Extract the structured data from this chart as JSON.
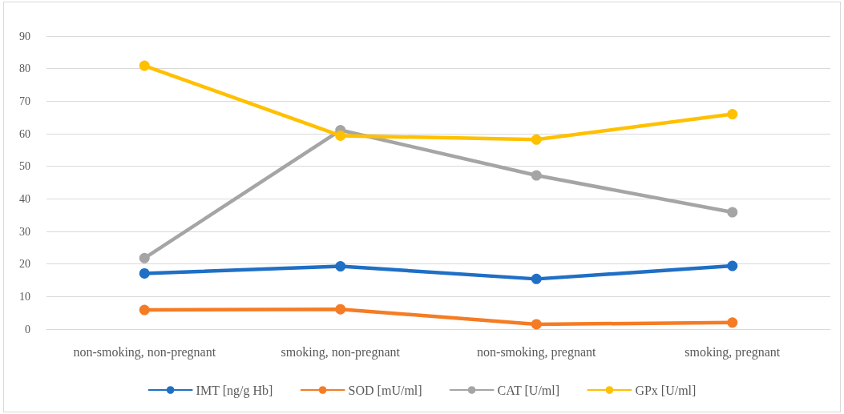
{
  "chart_data": {
    "type": "line",
    "categories": [
      "non-smoking, non-pregnant",
      "smoking, non-pregnant",
      "non-smoking, pregnant",
      "smoking, pregnant"
    ],
    "series": [
      {
        "name": "IMT [ng/g Hb]",
        "color": "#1f6fc5",
        "values": [
          17.1,
          19.3,
          15.4,
          19.4
        ]
      },
      {
        "name": "SOD [mU/ml]",
        "color": "#f57c24",
        "values": [
          5.9,
          6.1,
          1.5,
          2.0
        ]
      },
      {
        "name": "CAT [U/ml]",
        "color": "#a5a5a5",
        "values": [
          21.8,
          61.1,
          47.2,
          35.9
        ]
      },
      {
        "name": "GPx [U/ml]",
        "color": "#ffc000",
        "values": [
          80.9,
          59.4,
          58.2,
          66.0
        ]
      }
    ],
    "ylim": [
      0,
      90
    ],
    "yticks": [
      0,
      10,
      20,
      30,
      40,
      50,
      60,
      70,
      80,
      90
    ],
    "grid": "y",
    "legend": "bottom",
    "marker": "circle",
    "line_style": "solid"
  }
}
